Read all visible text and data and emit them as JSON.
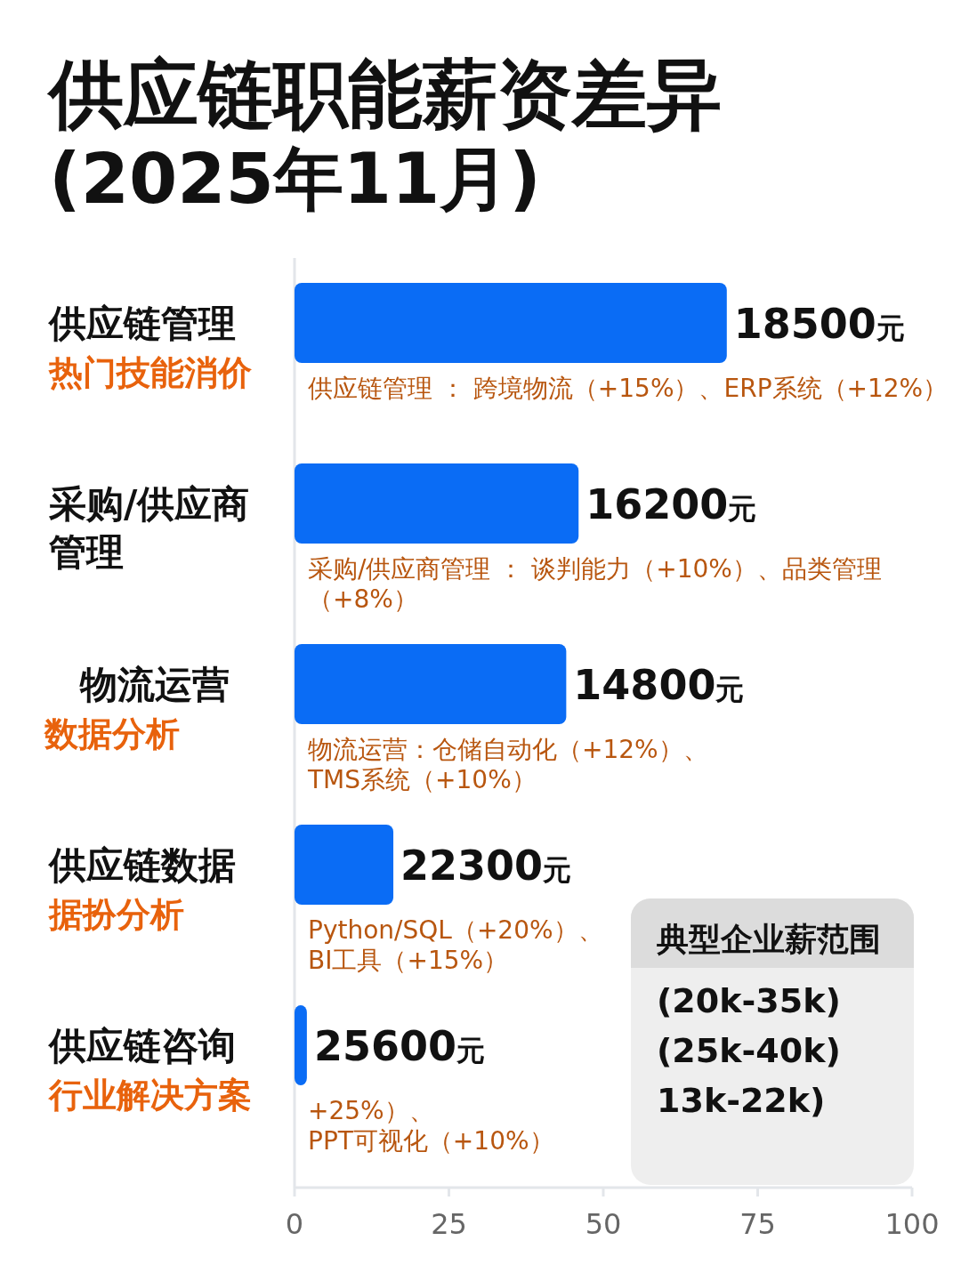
{
  "chart_data": {
    "type": "bar",
    "orientation": "horizontal",
    "title": "供应链职能薪资差异",
    "subtitle": "(2025年11月)",
    "categories": [
      "供应链管理",
      "采购/供应商管理",
      "物流运营",
      "供应链数据",
      "供应链咨询"
    ],
    "values": [
      70,
      46,
      44,
      16,
      2
    ],
    "color": "#0a6cf5",
    "xlim": [
      0,
      100
    ],
    "xticks": [
      0,
      25,
      50,
      75,
      100
    ],
    "annotations": [
      "热门技能消价",
      "数据分析",
      "据扮分析",
      "行业解决方案",
      "供应链管理 ： 跨境物流（+15%）、ERP系统（+12%）",
      "采购/供应商管理 ： 谈判能力（+10%）、品类管理（+8%）",
      "物流运营：仓储自动化（+12%）、TMS系统（+10%）",
      "Python/SQL（+20%）、BI工具（+15%）",
      "+25%）、PPT可视化（+10%）",
      "典型企业薪范围",
      "(20k-35k)",
      "(25k-40k)",
      "13k-22k)",
      {
        "text": "18500元",
        "x": 70,
        "y": "供应链管理"
      },
      {
        "text": "16200元",
        "x": 46,
        "y": "采购/供应商管理"
      },
      {
        "text": "14800元",
        "x": 44,
        "y": "物流运营"
      },
      {
        "text": "22300元",
        "x": 16,
        "y": "供应链数据"
      },
      {
        "text": "25600元",
        "x": 2,
        "y": "供应链咨询"
      }
    ]
  }
}
